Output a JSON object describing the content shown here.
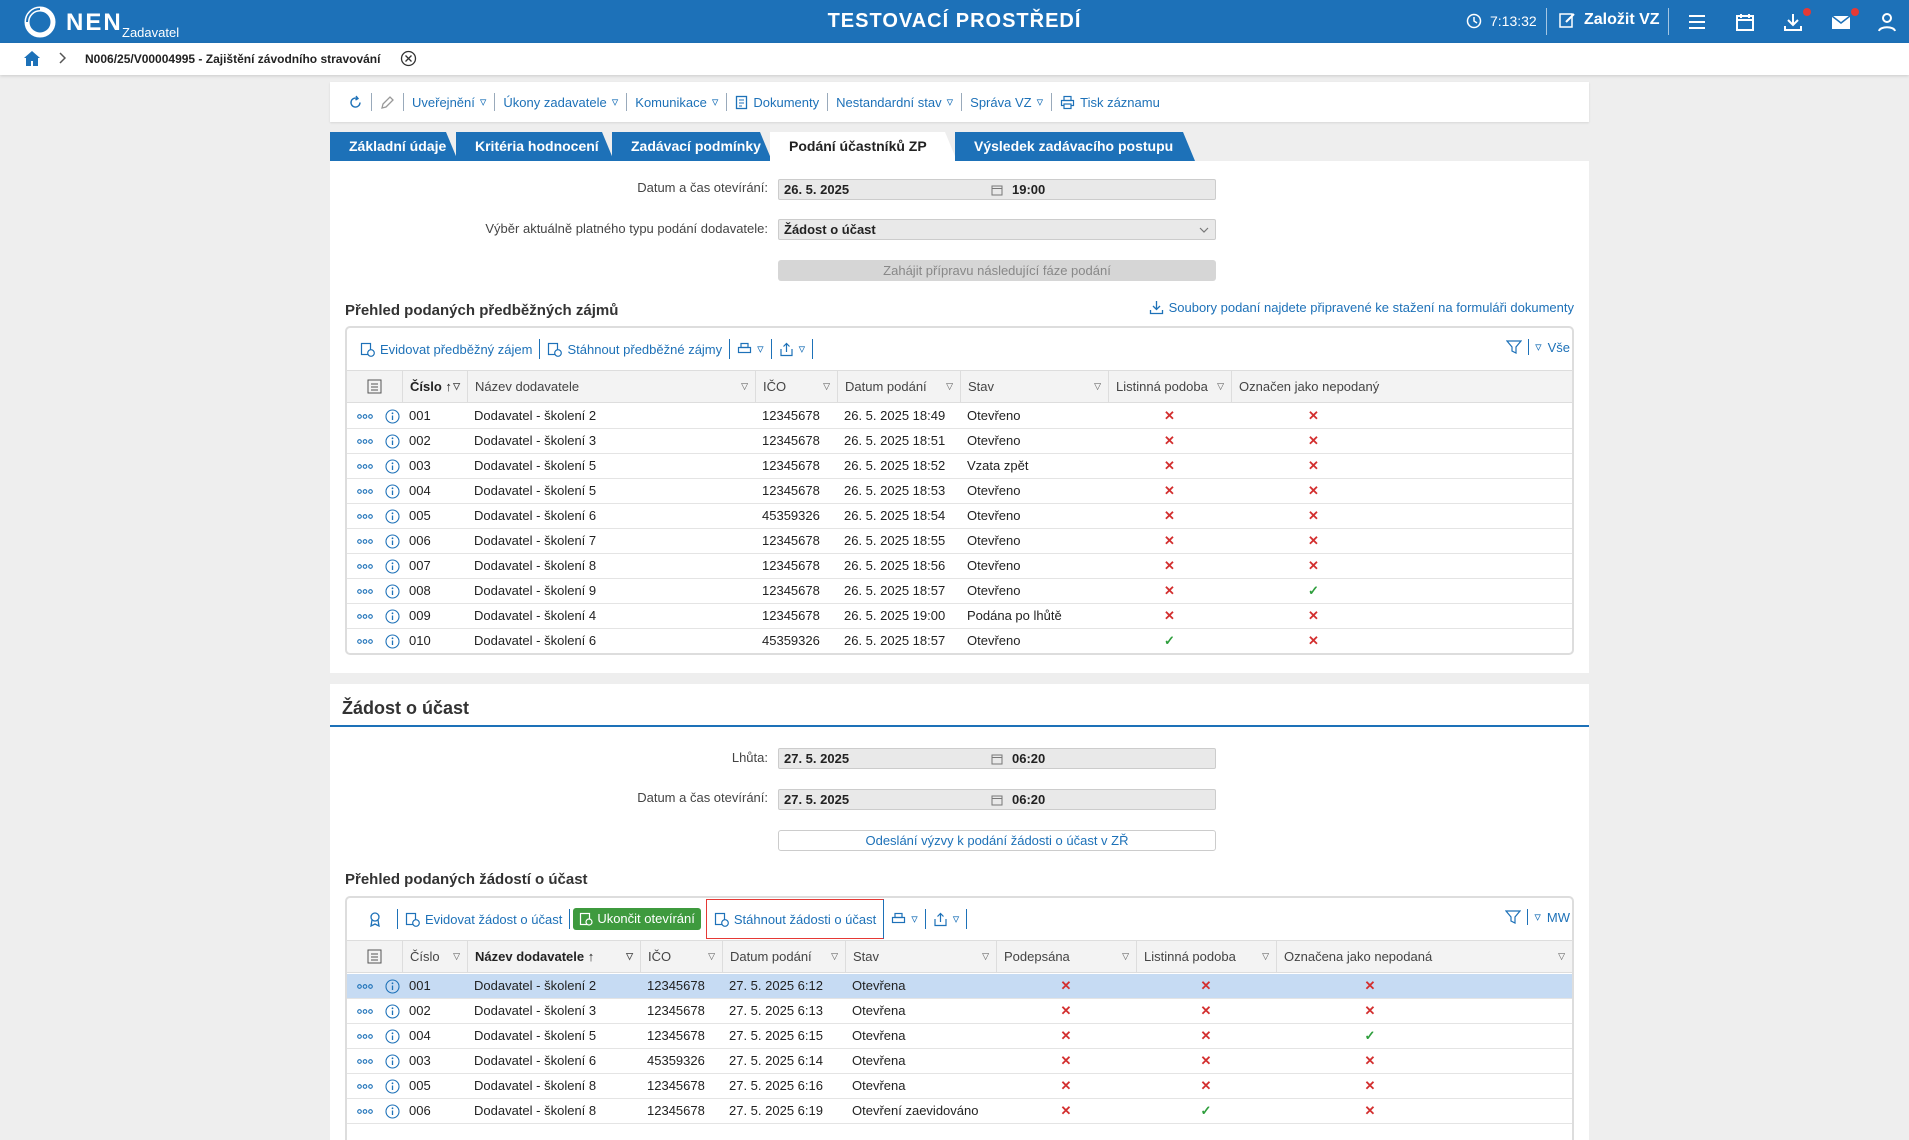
{
  "app": {
    "logo_text": "NEN",
    "logo_sub": "Zadavatel",
    "environment_title": "TESTOVACÍ PROSTŘEDÍ",
    "clock": "7:13:32",
    "create_button": "Založit VZ"
  },
  "breadcrumb": {
    "text": "N006/25/V00004995 - Zajištění závodního stravování"
  },
  "toolbar": {
    "items": [
      "Uveřejnění",
      "Úkony zadavatele",
      "Komunikace",
      "Dokumenty",
      "Nestandardní stav",
      "Správa VZ",
      "Tisk záznamu"
    ]
  },
  "tabs": [
    "Základní údaje",
    "Kritéria hodnocení",
    "Zadávací podmínky",
    "Podání účastníků ZP",
    "Výsledek zadávacího postupu"
  ],
  "active_tab": "Podání účastníků ZP",
  "form1": {
    "opening_label": "Datum a čas otevírání:",
    "opening_date": "26. 5. 2025",
    "opening_time": "19:00",
    "type_label": "Výběr aktuálně platného typu podání dodavatele:",
    "type_value": "Žádost o účast",
    "next_phase_button": "Zahájit přípravu následující fáze podání"
  },
  "grid1": {
    "title": "Přehled podaných předběžných zájmů",
    "files_link": "Soubory podaní najdete připravené ke stažení na formuláři dokumenty",
    "tool_add": "Evidovat předběžný zájem",
    "tool_download": "Stáhnout předběžné zájmy",
    "filter_label": "Vše",
    "columns": [
      "Číslo",
      "Název dodavatele",
      "IČO",
      "Datum podání",
      "Stav",
      "Listinná podoba",
      "Označen jako nepodaný"
    ],
    "rows": [
      [
        "001",
        "Dodavatel - školení 2",
        "12345678",
        "26. 5. 2025 18:49",
        "Otevřeno",
        "x",
        "x"
      ],
      [
        "002",
        "Dodavatel - školení 3",
        "12345678",
        "26. 5. 2025 18:51",
        "Otevřeno",
        "x",
        "x"
      ],
      [
        "003",
        "Dodavatel - školení 5",
        "12345678",
        "26. 5. 2025 18:52",
        "Vzata zpět",
        "x",
        "x"
      ],
      [
        "004",
        "Dodavatel - školení 5",
        "12345678",
        "26. 5. 2025 18:53",
        "Otevřeno",
        "x",
        "x"
      ],
      [
        "005",
        "Dodavatel - školení 6",
        "45359326",
        "26. 5. 2025 18:54",
        "Otevřeno",
        "x",
        "x"
      ],
      [
        "006",
        "Dodavatel - školení 7",
        "12345678",
        "26. 5. 2025 18:55",
        "Otevřeno",
        "x",
        "x"
      ],
      [
        "007",
        "Dodavatel - školení 8",
        "12345678",
        "26. 5. 2025 18:56",
        "Otevřeno",
        "x",
        "x"
      ],
      [
        "008",
        "Dodavatel - školení 9",
        "12345678",
        "26. 5. 2025 18:57",
        "Otevřeno",
        "x",
        "ok"
      ],
      [
        "009",
        "Dodavatel - školení 4",
        "12345678",
        "26. 5. 2025 19:00",
        "Podána po lhůtě",
        "x",
        "x"
      ],
      [
        "010",
        "Dodavatel - školení 6",
        "45359326",
        "26. 5. 2025 18:57",
        "Otevřeno",
        "ok",
        "x"
      ]
    ]
  },
  "section2": {
    "title": "Žádost o účast",
    "deadline_label": "Lhůta:",
    "deadline_date": "27. 5. 2025",
    "deadline_time": "06:20",
    "opening_label": "Datum a čas otevírání:",
    "opening_date": "27. 5. 2025",
    "opening_time": "06:20",
    "invite_button": "Odeslání výzvy k podání žádosti o účast v ZŘ"
  },
  "grid2": {
    "title": "Přehled podaných žádostí o účast",
    "tool_add": "Evidovat žádost o účast",
    "tool_end": "Ukončit otevírání",
    "tool_download": "Stáhnout žádosti o účast",
    "filter_label": "MW",
    "columns": [
      "Číslo",
      "Název dodavatele",
      "IČO",
      "Datum podání",
      "Stav",
      "Podepsána",
      "Listinná podoba",
      "Označena jako nepodaná"
    ],
    "rows": [
      [
        "001",
        "Dodavatel - školení 2",
        "12345678",
        "27. 5. 2025 6:12",
        "Otevřena",
        "x",
        "x",
        "x"
      ],
      [
        "002",
        "Dodavatel - školení 3",
        "12345678",
        "27. 5. 2025 6:13",
        "Otevřena",
        "x",
        "x",
        "x"
      ],
      [
        "004",
        "Dodavatel - školení 5",
        "12345678",
        "27. 5. 2025 6:15",
        "Otevřena",
        "x",
        "x",
        "ok"
      ],
      [
        "003",
        "Dodavatel - školení 6",
        "45359326",
        "27. 5. 2025 6:14",
        "Otevřena",
        "x",
        "x",
        "x"
      ],
      [
        "005",
        "Dodavatel - školení 8",
        "12345678",
        "27. 5. 2025 6:16",
        "Otevřena",
        "x",
        "x",
        "x"
      ],
      [
        "006",
        "Dodavatel - školení 8",
        "12345678",
        "27. 5. 2025 6:19",
        "Otevření zaevidováno",
        "x",
        "ok",
        "x"
      ]
    ]
  },
  "colors": {
    "brand": "#1d71b8",
    "error": "#d32f2f",
    "success": "#2e9e3c",
    "selected_row": "#c6dbf3"
  }
}
